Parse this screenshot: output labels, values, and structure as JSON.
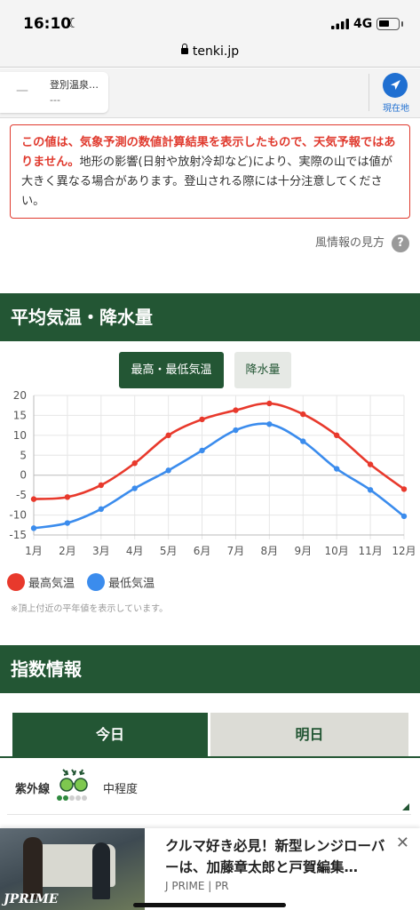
{
  "status_bar": {
    "time": "16:10",
    "network": "4G",
    "url": "tenki.jp",
    "icons": [
      "moon-icon",
      "signal-icon",
      "battery-icon",
      "lock-icon"
    ]
  },
  "location_bar": {
    "dash": "—",
    "name": "登別温泉…",
    "value": "---",
    "current_location_label": "現在地"
  },
  "notice": {
    "warning": "この値は、気象予測の数値計算結果を表示したもので、天気予報ではありません。",
    "body": "地形の影響(日射や放射冷却など)により、実際の山では値が大きく異なる場合があります。登山される際には十分注意してください。"
  },
  "wind_link": "風情報の見方",
  "help_icon_glyph": "?",
  "climate_section": {
    "title": "平均気温・降水量",
    "tabs": [
      "最高・最低気温",
      "降水量"
    ],
    "note": "※頂上付近の平年値を表示しています。"
  },
  "chart_data": {
    "type": "line",
    "categories": [
      "1月",
      "2月",
      "3月",
      "4月",
      "5月",
      "6月",
      "7月",
      "8月",
      "9月",
      "10月",
      "11月",
      "12月"
    ],
    "series": [
      {
        "name": "最高気温",
        "color": "#e8392c",
        "values": [
          -6.0,
          -5.5,
          -2.5,
          3.0,
          10.0,
          14.0,
          16.3,
          18.0,
          15.3,
          10.0,
          2.7,
          -3.5
        ]
      },
      {
        "name": "最低気温",
        "color": "#3b8ced",
        "values": [
          -13.3,
          -12.0,
          -8.5,
          -3.3,
          1.2,
          6.2,
          11.3,
          12.8,
          8.5,
          1.6,
          -3.7,
          -10.3
        ]
      }
    ],
    "y_ticks": [
      "20",
      "15",
      "10",
      "5",
      "0",
      "-5",
      "-10",
      "-15"
    ],
    "ylim": [
      -15,
      20
    ],
    "grid": true,
    "legend_position": "bottom-left"
  },
  "index_section": {
    "title": "指数情報",
    "tabs": [
      "今日",
      "明日"
    ],
    "uv": {
      "label": "紫外線",
      "value": "中程度",
      "level": 2,
      "max_level": 5
    }
  },
  "ad": {
    "title": "クルマ好き必見！新型レンジローバーは、加藤章太郎と戸賀編集…",
    "source": "J PRIME | PR",
    "brand": "JPRIME",
    "close": "✕"
  },
  "colors": {
    "brand_green": "#235634",
    "warning_red": "#e03a2e",
    "link_blue": "#1f6fd1"
  }
}
